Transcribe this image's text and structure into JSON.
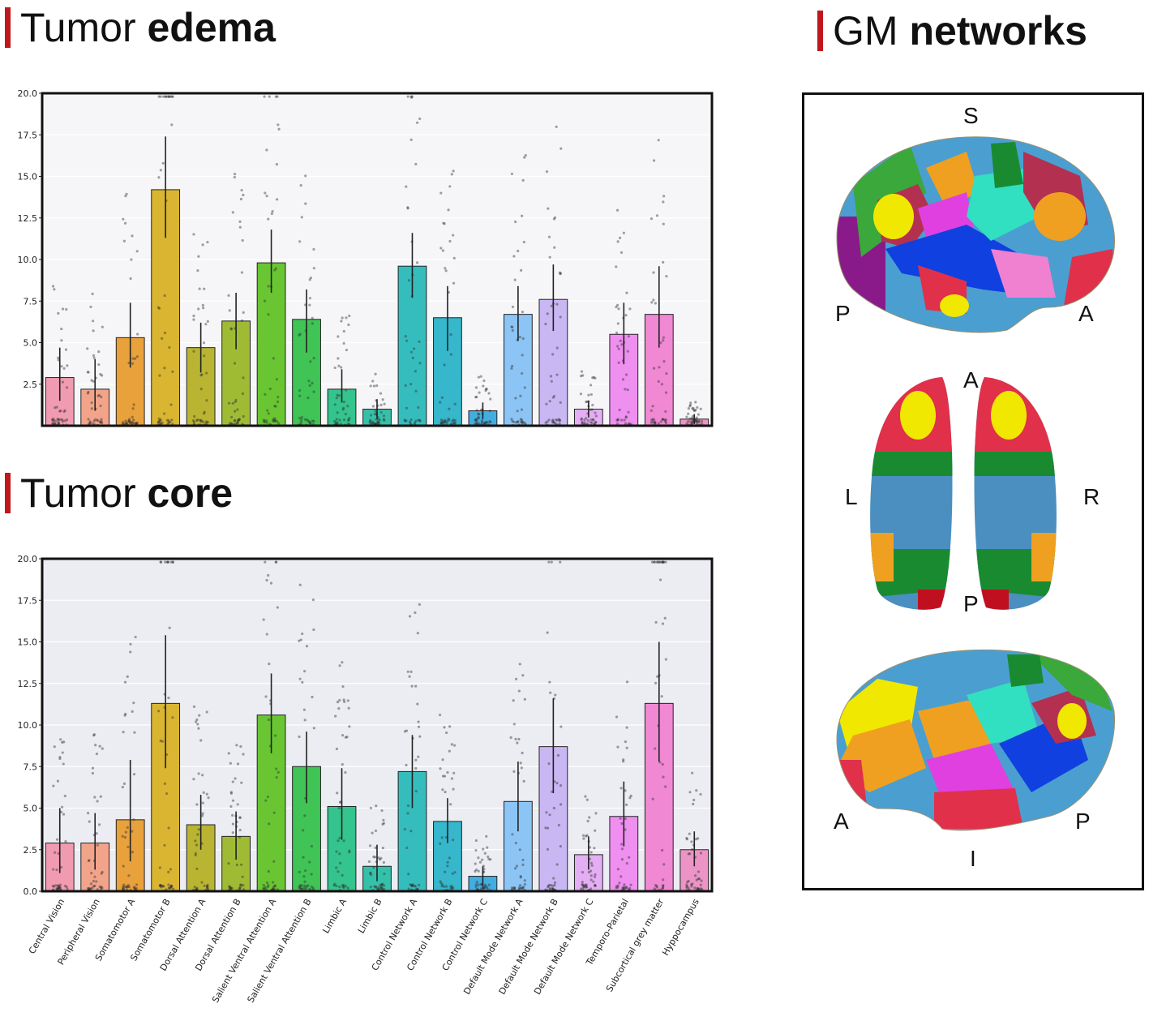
{
  "headings": {
    "edema": {
      "normal": "Tumor ",
      "bold": "edema"
    },
    "core": {
      "normal": "Tumor ",
      "bold": "core"
    },
    "networks": {
      "normal": "GM ",
      "bold": "networks"
    }
  },
  "colors": {
    "accent": "#c0171c",
    "bars": [
      "#f19bb0",
      "#f2a48a",
      "#e9a13b",
      "#d9b532",
      "#b9b432",
      "#9fbb34",
      "#69c632",
      "#3fc455",
      "#34c48d",
      "#35c1a9",
      "#35bdbd",
      "#36b7cc",
      "#42aee0",
      "#8cc5f5",
      "#c9b7f3",
      "#e3aef3",
      "#ef8ff0",
      "#f088d3",
      "#ec94c5"
    ]
  },
  "orientation": {
    "top_view": {
      "s": "S",
      "p": "P",
      "a": "A"
    },
    "mid_view": {
      "a": "A",
      "l": "L",
      "r": "R",
      "p": "P"
    },
    "bottom_view": {
      "a": "A",
      "p": "P",
      "i": "I"
    }
  },
  "chart_data": [
    {
      "id": "edema",
      "type": "bar",
      "title": "Tumor edema",
      "xlabel": "",
      "ylabel": "",
      "ylim": [
        0,
        20
      ],
      "yticks": [
        "2.5",
        "5.0",
        "7.5",
        "10.0",
        "12.5",
        "15.0",
        "17.5",
        "20.0"
      ],
      "categories": [
        "Central Vision",
        "Peripheral Vision",
        "Somatomotor A",
        "Somatomotor B",
        "Dorsal Attention A",
        "Dorsal Attention B",
        "Salient Ventral Attention A",
        "Salient Ventral Attention B",
        "Limbic A",
        "Limbic B",
        "Control Network A",
        "Control Network B",
        "Control Network C",
        "Default Mode Network A",
        "Default Mode Network B",
        "Default Mode Network C",
        "Temporo-Parietal",
        "Subcortical grey matter",
        "Hyppocampus"
      ],
      "values": [
        2.9,
        2.2,
        5.3,
        14.2,
        4.7,
        6.3,
        9.8,
        6.4,
        2.2,
        1.0,
        9.6,
        6.5,
        0.9,
        6.7,
        7.6,
        1.0,
        5.5,
        6.7,
        0.4
      ],
      "err_low": [
        1.5,
        0.9,
        3.5,
        11.3,
        3.2,
        4.6,
        8.0,
        4.4,
        1.4,
        0.4,
        7.7,
        4.5,
        0.4,
        5.1,
        5.7,
        0.5,
        3.7,
        4.7,
        0.1
      ],
      "err_high": [
        4.7,
        4.0,
        7.4,
        17.4,
        6.2,
        8.0,
        11.8,
        8.2,
        3.4,
        1.6,
        11.6,
        8.4,
        1.4,
        8.4,
        9.7,
        1.5,
        7.4,
        9.6,
        0.7
      ]
    },
    {
      "id": "core",
      "type": "bar",
      "title": "Tumor core",
      "xlabel": "",
      "ylabel": "",
      "ylim": [
        0,
        20
      ],
      "yticks": [
        "0.0",
        "2.5",
        "5.0",
        "7.5",
        "10.0",
        "12.5",
        "15.0",
        "17.5",
        "20.0"
      ],
      "categories": [
        "Central Vision",
        "Peripheral Vision",
        "Somatomotor A",
        "Somatomotor B",
        "Dorsal Attention A",
        "Dorsal Attention B",
        "Salient Ventral Attention A",
        "Salient Ventral Attention B",
        "Limbic A",
        "Limbic B",
        "Control Network A",
        "Control Network B",
        "Control Network C",
        "Default Mode Network A",
        "Default Mode Network B",
        "Default Mode Network C",
        "Temporo-Parietal",
        "Subcortical grey matter",
        "Hyppocampus"
      ],
      "values": [
        2.9,
        2.9,
        4.3,
        11.3,
        4.0,
        3.3,
        10.6,
        7.5,
        5.1,
        1.5,
        7.2,
        4.2,
        0.9,
        5.4,
        8.7,
        2.2,
        4.5,
        11.3,
        2.5
      ],
      "err_low": [
        1.1,
        1.3,
        1.8,
        7.4,
        2.5,
        1.9,
        8.3,
        5.3,
        3.1,
        0.6,
        5.0,
        2.9,
        0.3,
        3.6,
        5.9,
        1.3,
        2.7,
        7.8,
        1.5
      ],
      "err_high": [
        5.0,
        4.7,
        7.9,
        15.4,
        5.8,
        4.8,
        13.1,
        9.6,
        7.4,
        2.8,
        9.4,
        5.6,
        1.5,
        7.8,
        11.6,
        3.3,
        6.6,
        15.0,
        3.6
      ]
    }
  ]
}
